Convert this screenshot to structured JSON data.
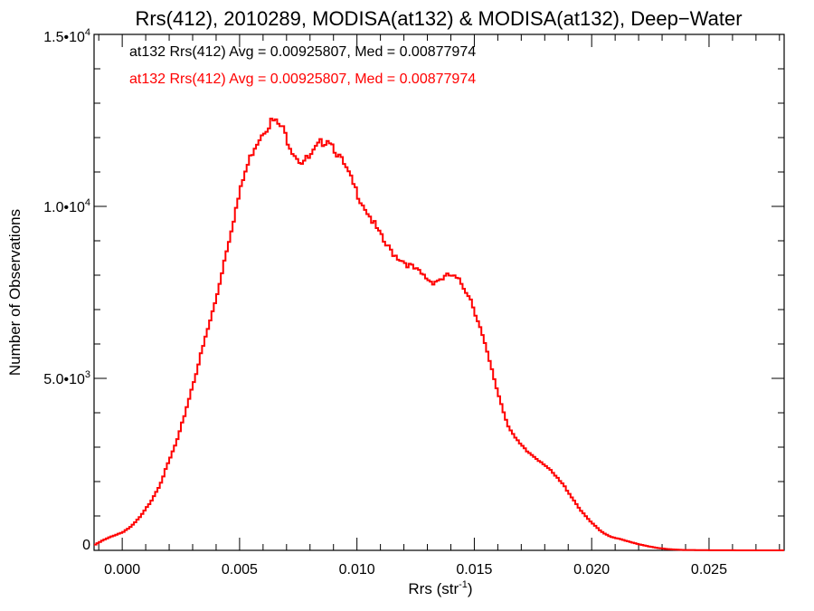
{
  "chart_data": {
    "type": "histogram",
    "title": "Rrs(412), 2010289, MODISA(at132) & MODISA(at132), Deep−Water",
    "xlabel": {
      "base": "Rrs (str",
      "sup": "-1",
      "tail": ")"
    },
    "ylabel": "Number of Observations",
    "xlim": [
      -0.0012,
      0.0282
    ],
    "ylim": [
      0,
      15000
    ],
    "x_ticks": [
      0.0,
      0.005,
      0.01,
      0.015,
      0.02,
      0.025
    ],
    "x_tick_labels": [
      "0.000",
      "0.005",
      "0.010",
      "0.015",
      "0.020",
      "0.025"
    ],
    "y_ticks": [
      {
        "value": 0,
        "label": "0",
        "sup": ""
      },
      {
        "value": 5000,
        "label": "5.0•10",
        "sup": "3"
      },
      {
        "value": 10000,
        "label": "1.0•10",
        "sup": "4"
      },
      {
        "value": 15000,
        "label": "1.5•10",
        "sup": "4"
      }
    ],
    "annotations": [
      {
        "text": "at132 Rrs(412) Avg = 0.00925807, Med = 0.00877974",
        "color": "#000000"
      },
      {
        "text": "at132 Rrs(412) Avg = 0.00925807, Med = 0.00877974",
        "color": "#ff0000"
      }
    ],
    "series": [
      {
        "color": "#ff0000",
        "x": [
          -0.0012,
          -0.0008,
          -0.0004,
          0.0,
          0.0004,
          0.0008,
          0.0012,
          0.0016,
          0.002,
          0.0024,
          0.0028,
          0.0032,
          0.0036,
          0.004,
          0.0044,
          0.0048,
          0.0052,
          0.0056,
          0.006,
          0.0064,
          0.0068,
          0.0072,
          0.0076,
          0.008,
          0.0084,
          0.0088,
          0.0092,
          0.0096,
          0.01,
          0.0104,
          0.0108,
          0.0112,
          0.0116,
          0.012,
          0.0124,
          0.0128,
          0.0132,
          0.0136,
          0.014,
          0.0144,
          0.0148,
          0.0152,
          0.0156,
          0.016,
          0.0164,
          0.0168,
          0.0172,
          0.0176,
          0.018,
          0.0184,
          0.0188,
          0.0192,
          0.0196,
          0.02,
          0.0204,
          0.0208,
          0.0212,
          0.0216,
          0.022,
          0.0224,
          0.0228,
          0.0232,
          0.0236,
          0.024,
          0.025,
          0.026,
          0.027,
          0.0282
        ],
        "values": [
          150,
          300,
          420,
          520,
          700,
          1000,
          1400,
          1900,
          2600,
          3300,
          4300,
          5300,
          6300,
          7300,
          8600,
          9800,
          10900,
          11700,
          12200,
          12500,
          12300,
          11700,
          11300,
          11400,
          11800,
          12000,
          11500,
          11000,
          10400,
          9900,
          9400,
          8900,
          8600,
          8400,
          8200,
          8000,
          7800,
          7900,
          8000,
          7800,
          7400,
          6600,
          5600,
          4600,
          3700,
          3200,
          2900,
          2700,
          2500,
          2200,
          1900,
          1500,
          1100,
          800,
          550,
          400,
          330,
          250,
          180,
          120,
          70,
          40,
          20,
          10,
          5,
          2,
          0,
          0
        ]
      }
    ]
  }
}
